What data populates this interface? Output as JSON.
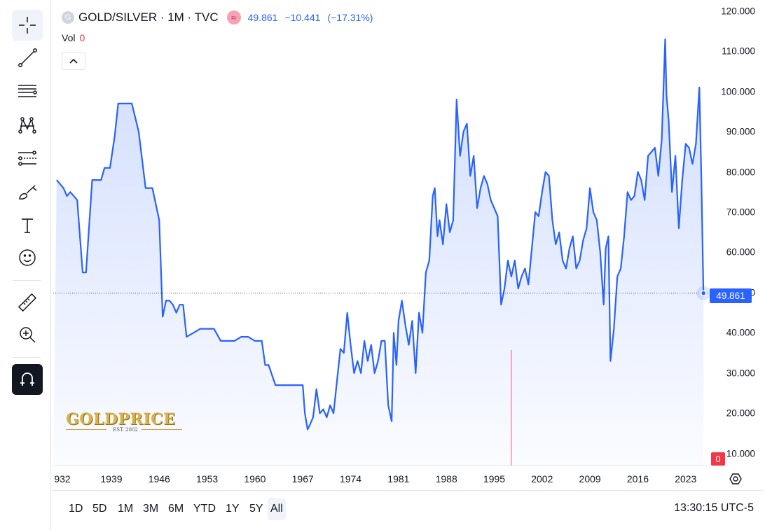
{
  "header": {
    "logo_letter": "G",
    "title": "GOLD/SILVER · 1M · TVC",
    "indicator_symbol": "≈",
    "last": "49.861",
    "change": "−10.441",
    "change_pct": "(−17.31%)"
  },
  "volume": {
    "label": "Vol",
    "value": "0"
  },
  "price_tag": "49.861",
  "vol_tag": "0",
  "watermark": {
    "brand": "GOLDPRICE",
    "tagline": "EST. 2002"
  },
  "timeframes": [
    "1D",
    "5D",
    "1M",
    "3M",
    "6M",
    "YTD",
    "1Y",
    "5Y",
    "All"
  ],
  "selected_timeframe": "All",
  "clock": "13:30:15 UTC-5",
  "colors": {
    "line": "#2962ff",
    "accent": "#2962ff",
    "down": "#f23645"
  },
  "tools": [
    "crosshair-icon",
    "trend-line-icon",
    "fib-icon",
    "pattern-icon",
    "prediction-icon",
    "brush-icon",
    "text-icon",
    "emoji-icon",
    "ruler-icon",
    "zoom-in-icon",
    "magnet-icon"
  ],
  "chart_data": {
    "type": "area",
    "title": "GOLD/SILVER · 1M · TVC",
    "y_ticks": [
      "120.000",
      "110.000",
      "100.000",
      "90.000",
      "80.000",
      "70.000",
      "60.000",
      "50.000",
      "40.000",
      "30.000",
      "20.000",
      "10.000"
    ],
    "ylim": [
      7,
      121
    ],
    "x_ticks": [
      "932",
      "1939",
      "1946",
      "1953",
      "1960",
      "1967",
      "1974",
      "1981",
      "1988",
      "1995",
      "2002",
      "2009",
      "2016",
      "2023"
    ],
    "xlim": [
      1930.5,
      2026.2
    ],
    "series": [
      {
        "x": [
          1931,
          1932,
          1932.5,
          1933,
          1934,
          1934.8,
          1935.3,
          1936.2,
          1937,
          1937.5,
          1938,
          1938.8,
          1939.5,
          1940,
          1941,
          1942,
          1943,
          1944,
          1945,
          1946,
          1946.5,
          1947,
          1947.5,
          1948,
          1948.5,
          1949,
          1949.5,
          1950,
          1951,
          1952,
          1953,
          1954,
          1955,
          1956,
          1957,
          1958,
          1959,
          1960,
          1961,
          1961.5,
          1962,
          1963,
          1964,
          1965,
          1966,
          1967,
          1967.3,
          1967.7,
          1968,
          1968.5,
          1969,
          1969.5,
          1970,
          1970.5,
          1971,
          1971.5,
          1972,
          1972.5,
          1973,
          1973.5,
          1974,
          1974.5,
          1975,
          1975.5,
          1976,
          1976.5,
          1977,
          1977.5,
          1978,
          1978.5,
          1979,
          1979.5,
          1980,
          1980.3,
          1980.7,
          1981,
          1981.5,
          1982,
          1982.5,
          1983,
          1983.5,
          1984,
          1984.5,
          1985,
          1985.5,
          1986,
          1986.3,
          1986.7,
          1987,
          1987.5,
          1988,
          1988.5,
          1989,
          1989.5,
          1990,
          1990.5,
          1991,
          1991.5,
          1992,
          1992.5,
          1993,
          1993.5,
          1994,
          1994.5,
          1995,
          1995.5,
          1996,
          1996.5,
          1997,
          1997.5,
          1998,
          1998.5,
          1999,
          1999.5,
          2000,
          2000.5,
          2001,
          2001.5,
          2002,
          2002.5,
          2003,
          2003.5,
          2004,
          2004.5,
          2005,
          2005.5,
          2006,
          2006.5,
          2007,
          2007.5,
          2008,
          2008.5,
          2009,
          2009.5,
          2010,
          2010.5,
          2011,
          2011.3,
          2011.7,
          2012,
          2012.5,
          2013,
          2013.5,
          2014,
          2014.5,
          2015,
          2015.5,
          2016,
          2016.5,
          2017,
          2017.5,
          2018,
          2018.5,
          2019,
          2019.5,
          2020,
          2020.2,
          2020.5,
          2021,
          2021.5,
          2022,
          2022.5,
          2023,
          2023.5,
          2024,
          2024.5,
          2025,
          2025.3,
          2025.6
        ],
        "y": [
          78,
          76,
          74,
          75,
          73,
          55,
          55,
          78,
          78,
          78,
          81,
          81,
          89,
          97,
          97,
          97,
          90,
          76,
          76,
          68,
          44,
          48,
          48,
          47,
          45,
          47,
          47,
          39,
          40,
          41,
          41,
          41,
          38,
          38,
          38,
          39,
          39,
          38,
          38,
          32,
          32,
          27,
          27,
          27,
          27,
          27,
          20,
          16,
          17,
          19,
          26,
          20,
          21,
          19,
          22,
          20,
          28,
          36,
          35,
          45,
          37,
          30,
          33,
          30,
          38,
          33,
          37,
          30,
          33,
          38,
          38,
          22,
          18,
          40,
          32,
          43,
          48,
          42,
          37,
          43,
          30,
          45,
          40,
          55,
          58,
          74,
          76,
          64,
          68,
          62,
          72,
          65,
          68,
          98,
          84,
          90,
          92,
          79,
          84,
          71,
          76,
          79,
          77,
          73,
          71,
          69,
          47,
          51,
          58,
          54,
          58,
          51,
          54,
          56,
          52,
          61,
          70,
          69,
          75,
          80,
          79,
          68,
          62,
          65,
          58,
          56,
          61,
          64,
          56,
          58,
          63,
          66,
          76,
          70,
          68,
          60,
          47,
          61,
          64,
          33,
          41,
          54,
          56,
          64,
          75,
          73,
          74,
          80,
          78,
          73,
          84,
          85,
          86,
          79,
          88,
          113,
          99,
          93,
          75,
          84,
          66,
          78,
          87,
          86,
          82,
          87,
          101,
          78,
          50
        ],
        "last_value": 49.861
      }
    ],
    "volume_spike": {
      "x": 1997.5,
      "value_note": "single red volume bar"
    },
    "grid": true
  }
}
